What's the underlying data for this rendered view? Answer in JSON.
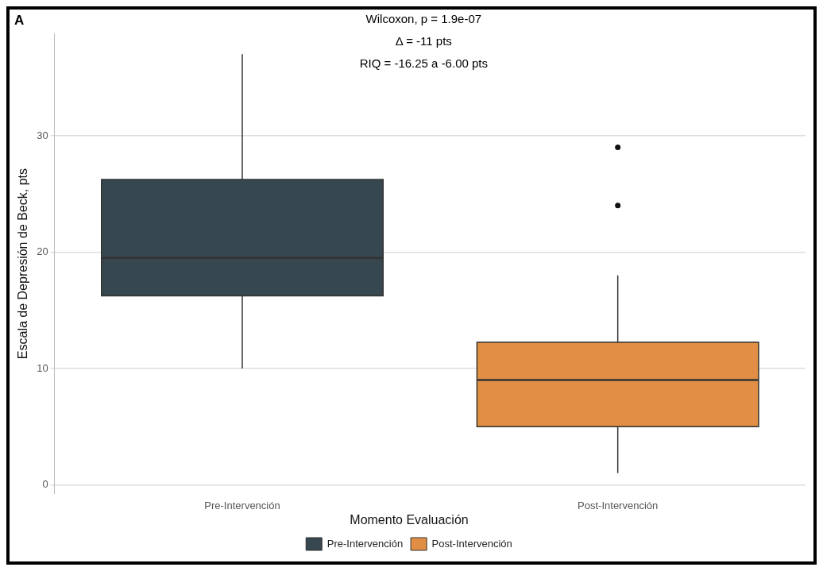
{
  "chart_data": {
    "type": "box",
    "ylabel": "Escala de Depresión de Beck, pts",
    "legend_title": "Momento Evaluación",
    "categories": [
      "Pre-Intervención",
      "Post-Intervención"
    ],
    "series": [
      {
        "name": "Pre-Intervención",
        "color": "#36474f",
        "boxes": [
          {
            "low": 10,
            "q1": 16.25,
            "median": 19.5,
            "q3": 26.25,
            "high": 37
          },
          null
        ]
      },
      {
        "name": "Post-Intervención",
        "color": "#e08f45",
        "boxes": [
          null,
          {
            "low": 1,
            "q1": 5,
            "median": 9,
            "q3": 12.25,
            "high": 18,
            "outliers": [
              24,
              29
            ]
          }
        ]
      }
    ],
    "ylim": [
      -0.8,
      38.8
    ],
    "yticks": [
      0,
      10,
      20,
      30
    ],
    "grid": "y",
    "legend": "bottom",
    "annotations": [
      "A",
      "Wilcoxon, p = 1.9e-07",
      "Δ = -11 pts",
      "RIQ = -16.25 a -6.00 pts"
    ]
  }
}
